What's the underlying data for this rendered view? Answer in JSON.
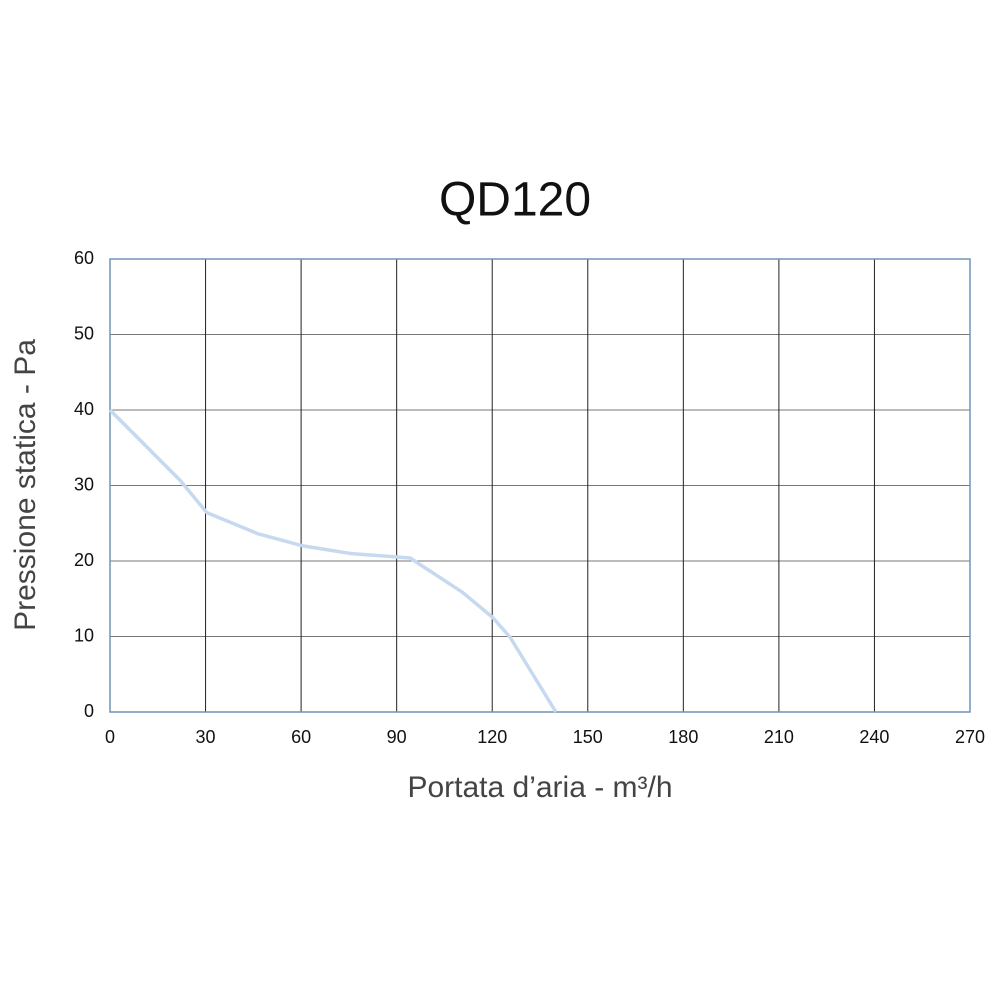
{
  "chart_data": {
    "type": "line",
    "title": "QD120",
    "x_label": "Portata d’aria - m³/h",
    "y_label": "Pressione statica - Pa",
    "x": [
      0,
      22,
      30.4,
      46.5,
      60.6,
      75.4,
      94.2,
      110.5,
      120.2,
      125.6,
      140
    ],
    "values": [
      40,
      30.7,
      26.4,
      23.6,
      22,
      21,
      20.4,
      15.9,
      12.5,
      9.9,
      0
    ],
    "color": "#c6d9ef",
    "xlim": [
      0,
      270
    ],
    "xticks": [
      0,
      30,
      60,
      90,
      120,
      150,
      180,
      210,
      240,
      270
    ],
    "ylim": [
      0,
      60
    ],
    "yticks": [
      0,
      10,
      20,
      30,
      40,
      50,
      60
    ],
    "grid": true
  }
}
